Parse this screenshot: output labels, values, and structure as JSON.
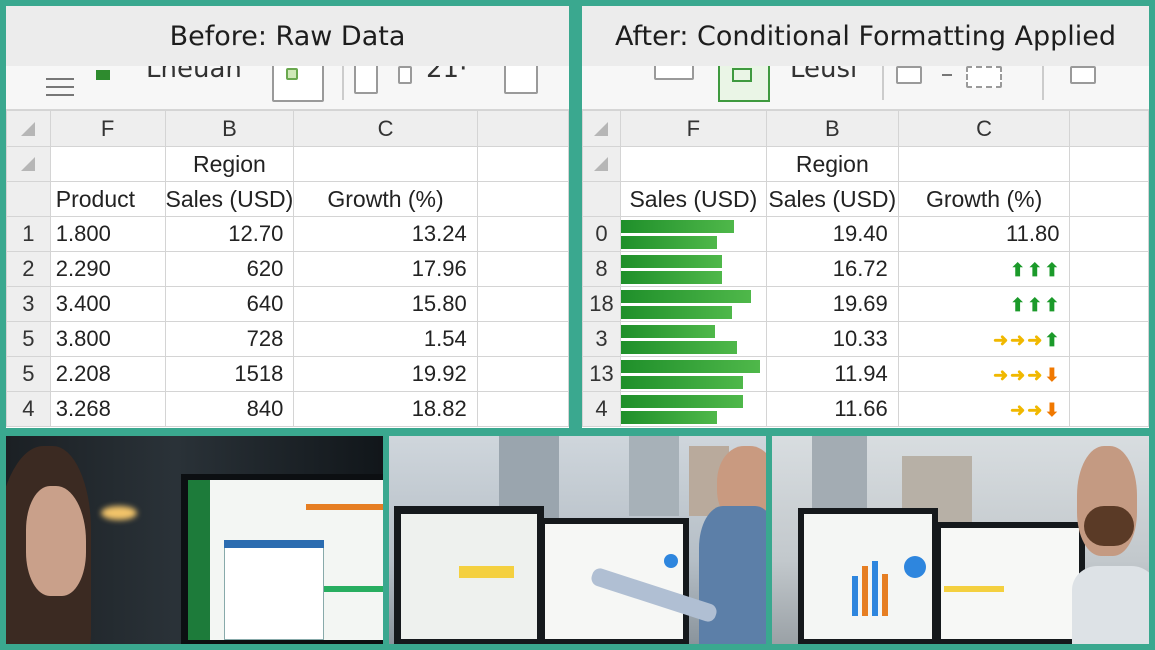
{
  "before": {
    "title": "Before: Raw Data",
    "ribbon_text": "Lneuan",
    "ribbon_text2": "21·",
    "columns": [
      "F",
      "B",
      "C",
      ""
    ],
    "header1": [
      "",
      "Region",
      ""
    ],
    "header2": [
      "Product",
      "Sales (USD)",
      "Growth (%)"
    ],
    "rows": [
      {
        "n": "1",
        "a": "1.800",
        "b": "12.70",
        "c": "13.24"
      },
      {
        "n": "2",
        "a": "2.290",
        "b": "620",
        "c": "17.96"
      },
      {
        "n": "3",
        "a": "3.400",
        "b": "640",
        "c": "15.80"
      },
      {
        "n": "5",
        "a": "3.800",
        "b": "728",
        "c": "1.54"
      },
      {
        "n": "5",
        "a": "2.208",
        "b": "1518",
        "c": "19.92"
      },
      {
        "n": "4",
        "a": "3.268",
        "b": "840",
        "c": "18.82"
      }
    ]
  },
  "after": {
    "title": "After: Conditional Formatting Applied",
    "ribbon_text": "Leusı",
    "columns": [
      "F",
      "B",
      "C"
    ],
    "header1": [
      "",
      "Region",
      ""
    ],
    "header2": [
      "Sales (USD)",
      "Sales (USD)",
      "Growth (%)"
    ],
    "rows": [
      {
        "n": "0",
        "bar": 0.78,
        "b": "19.40",
        "c": "11.80",
        "icons": []
      },
      {
        "n": "8",
        "bar": 0.7,
        "b": "16.72",
        "icons": [
          "up",
          "up",
          "up"
        ]
      },
      {
        "n": "18",
        "bar": 0.9,
        "b": "19.69",
        "icons": [
          "up",
          "up",
          "up"
        ]
      },
      {
        "n": "3",
        "bar": 0.65,
        "b": "10.33",
        "icons": [
          "mid",
          "mid",
          "mid",
          "up"
        ]
      },
      {
        "n": "13",
        "bar": 0.96,
        "b": "11.94",
        "icons": [
          "mid",
          "mid",
          "mid",
          "down"
        ]
      },
      {
        "n": "4",
        "bar": 0.84,
        "b": "11.66",
        "icons": [
          "mid",
          "mid",
          "down"
        ]
      }
    ],
    "bar_values": [
      0.78,
      0.65,
      0.83,
      0.9,
      0.92,
      0.64,
      0.95,
      0.78,
      1.0,
      0.9
    ]
  },
  "colors": {
    "frame": "#3aa88f",
    "bar_green": "#2f9a34",
    "icon_up": "#1b9a2a",
    "icon_mid": "#f0b800",
    "icon_down": "#f07800"
  }
}
